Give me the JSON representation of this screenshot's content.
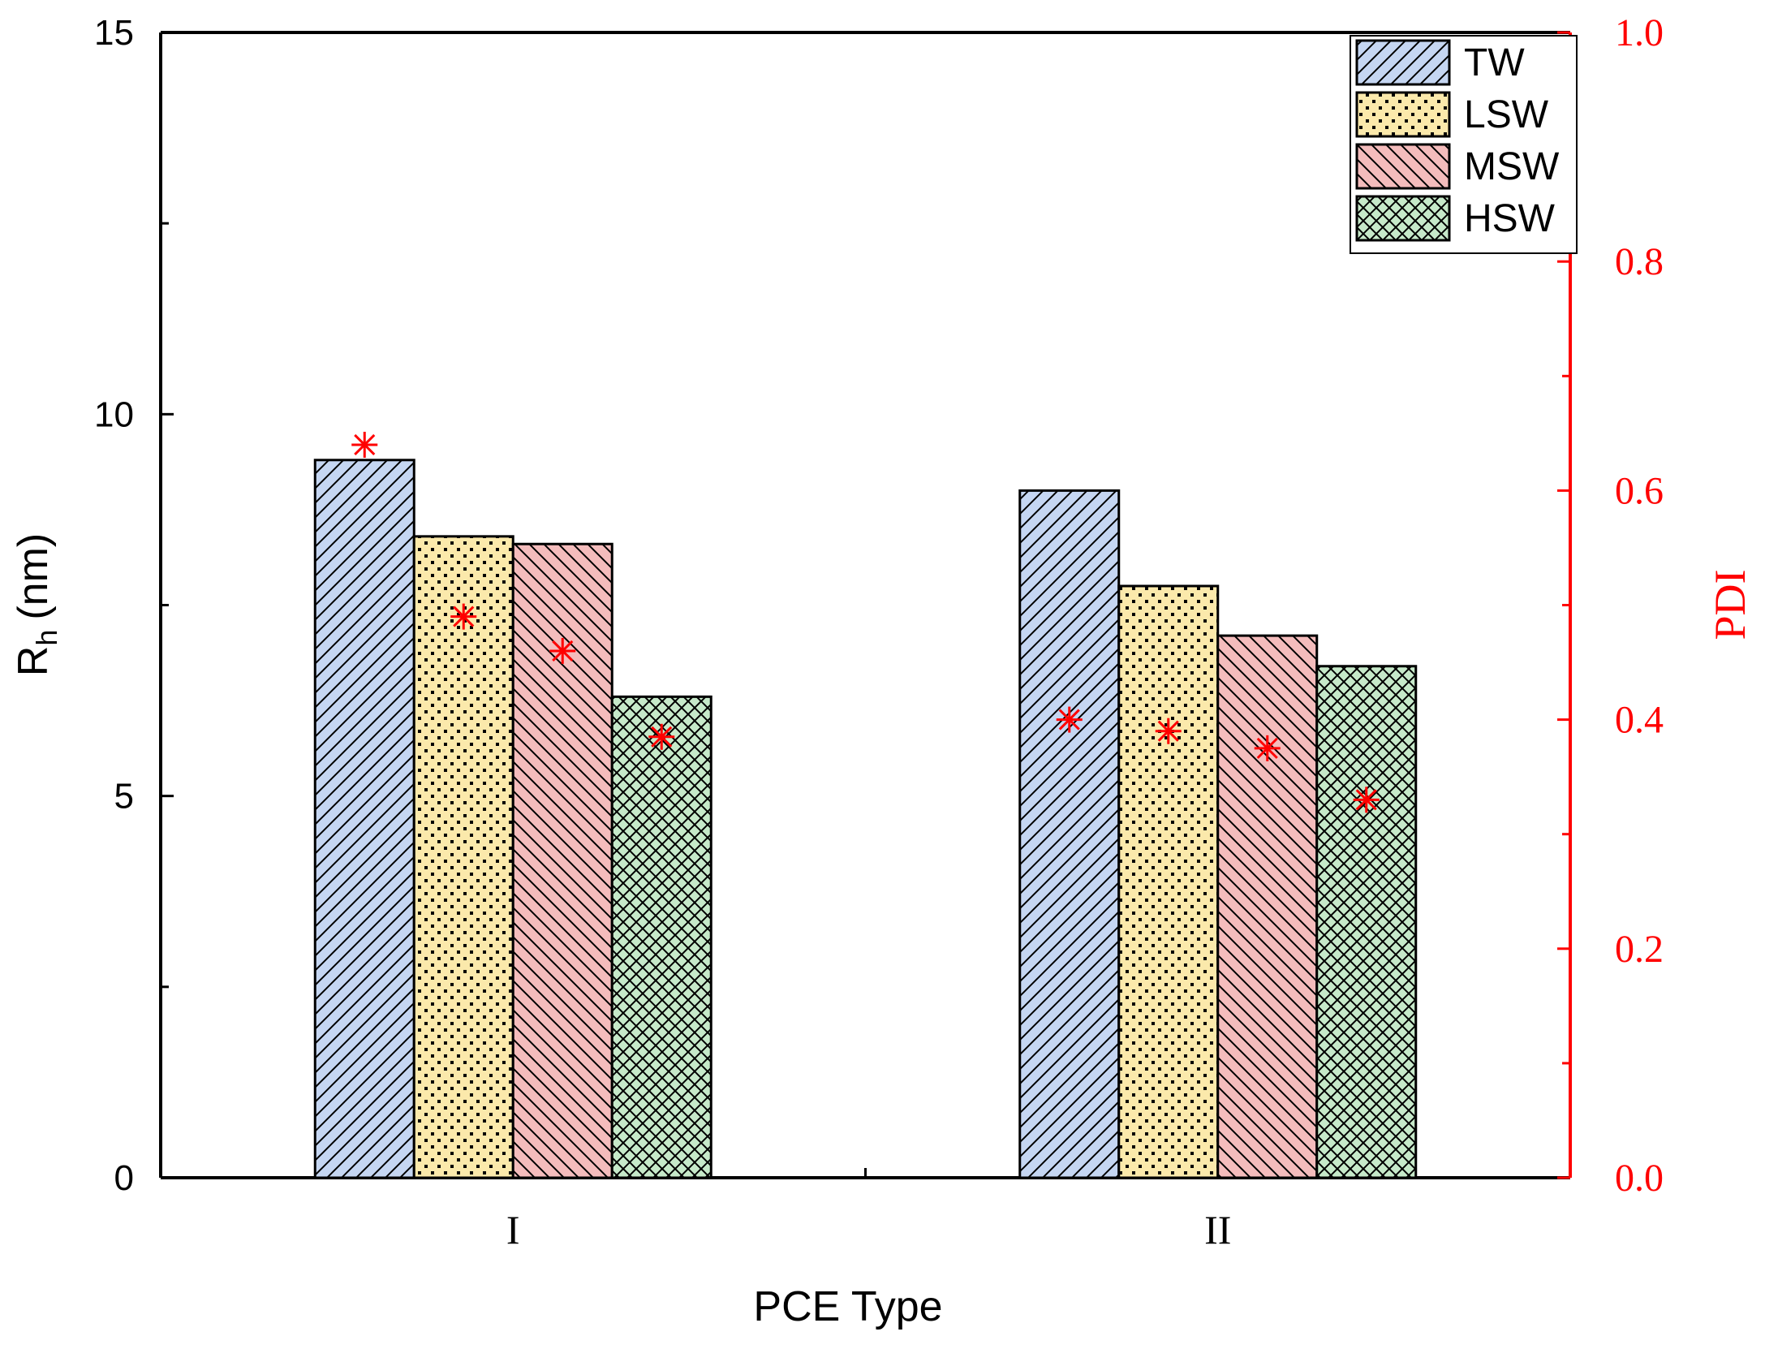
{
  "chart_data": {
    "type": "bar",
    "xlabel": "PCE Type",
    "ylabel_main": "R",
    "ylabel_sub": "h",
    "ylabel_unit": "(nm)",
    "ylabel2": "PDI",
    "categories": [
      "I",
      "II"
    ],
    "ylim": [
      0,
      15
    ],
    "y2lim": [
      0.0,
      1.0
    ],
    "yticks": [
      "0",
      "5",
      "10",
      "15"
    ],
    "y2ticks": [
      "0.0",
      "0.2",
      "0.4",
      "0.6",
      "0.8",
      "1.0"
    ],
    "series": [
      {
        "name": "TW",
        "values": [
          9.4,
          9.0
        ],
        "pdi": [
          0.64,
          0.4
        ],
        "fill": "#c5d6f2",
        "pattern": "diag-right"
      },
      {
        "name": "LSW",
        "values": [
          8.4,
          7.75
        ],
        "pdi": [
          0.49,
          0.39
        ],
        "fill": "#fbe9ab",
        "pattern": "dots"
      },
      {
        "name": "MSW",
        "values": [
          8.3,
          7.1
        ],
        "pdi": [
          0.46,
          0.375
        ],
        "fill": "#f4bcbc",
        "pattern": "diag-left"
      },
      {
        "name": "HSW",
        "values": [
          6.3,
          6.7
        ],
        "pdi": [
          0.385,
          0.33
        ],
        "fill": "#c6e9c9",
        "pattern": "crosshatch"
      }
    ],
    "legend_position": "top-right",
    "colors": {
      "primary_axis": "#000000",
      "secondary_axis": "#ff0000",
      "marker": "#ff0000"
    }
  }
}
